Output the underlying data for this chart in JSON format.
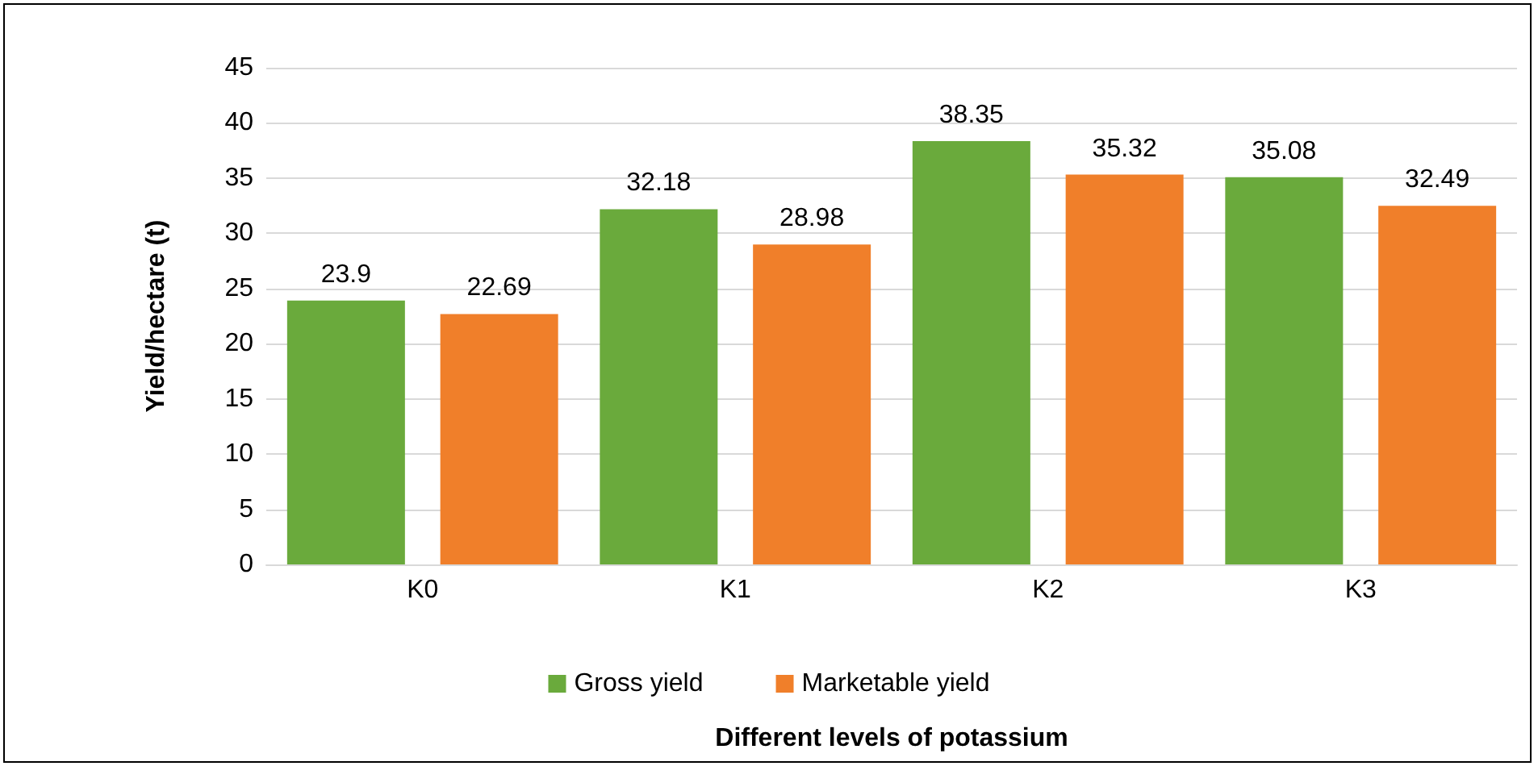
{
  "chart_data": {
    "type": "bar",
    "xlabel": "Different levels of potassium",
    "ylabel": "Yield/hectare (t)",
    "categories": [
      "K0",
      "K1",
      "K2",
      "K3"
    ],
    "series": [
      {
        "name": "Gross yield",
        "color": "#6aaa3c",
        "values": [
          23.9,
          32.18,
          38.35,
          35.08
        ]
      },
      {
        "name": "Marketable yield",
        "color": "#f07f2a",
        "values": [
          22.69,
          28.98,
          35.32,
          32.49
        ]
      }
    ],
    "ylim": [
      0,
      45
    ],
    "yticks": [
      0,
      5,
      10,
      15,
      20,
      25,
      30,
      35,
      40,
      45
    ],
    "grid": "y",
    "legend": "bottom",
    "data_labels": true
  }
}
